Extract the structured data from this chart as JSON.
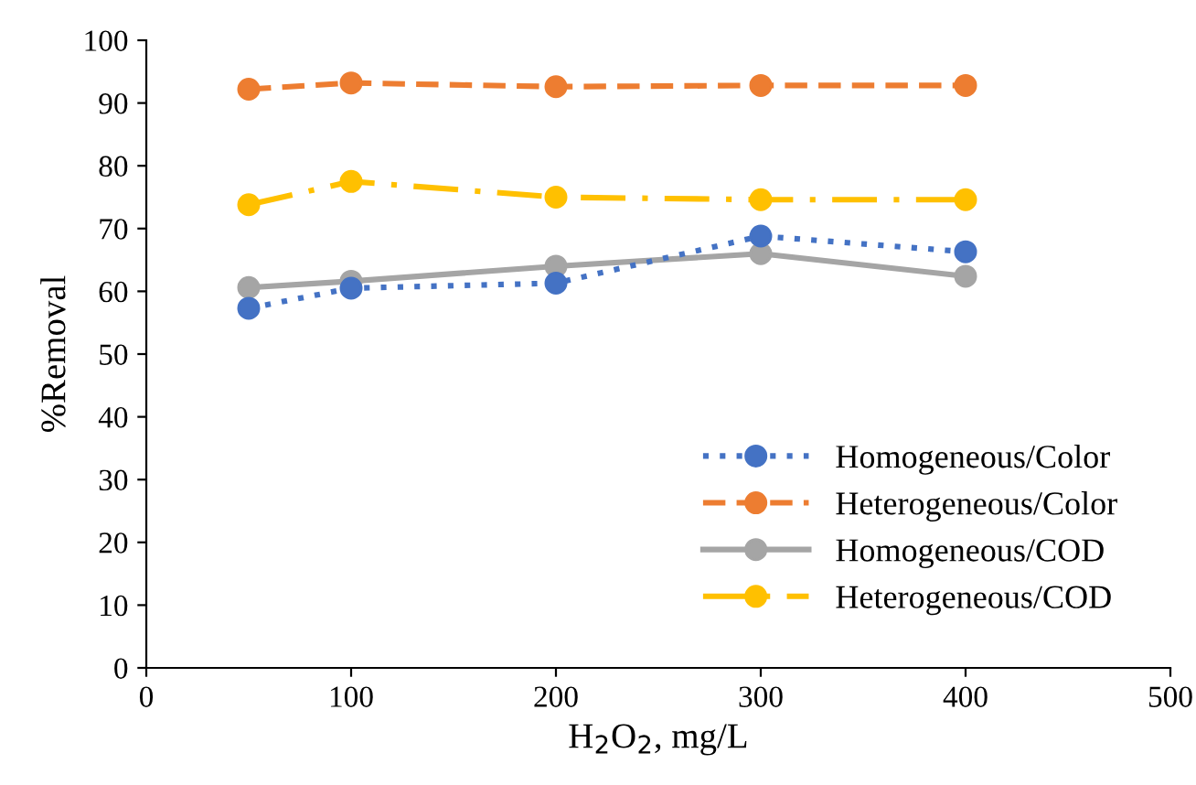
{
  "chart_data": {
    "type": "line",
    "xlabel": "H$_{2}$O$_{2}$, mg/L",
    "ylabel": "%Removal",
    "x": [
      50,
      100,
      200,
      300,
      400
    ],
    "series": [
      {
        "name": "Homogeneous/Color",
        "color": "#4472c4",
        "line_style": "dotted",
        "values": [
          57.3,
          60.5,
          61.3,
          68.8,
          66.3
        ]
      },
      {
        "name": "Heterogeneous/Color",
        "color": "#ed7d31",
        "line_style": "dashed",
        "values": [
          92.2,
          93.2,
          92.6,
          92.8,
          92.8
        ]
      },
      {
        "name": "Homogeneous/COD",
        "color": "#a5a5a5",
        "line_style": "solid",
        "values": [
          60.6,
          61.6,
          64.0,
          66.0,
          62.4
        ]
      },
      {
        "name": "Heterogeneous/COD",
        "color": "#ffc000",
        "line_style": "dashdot",
        "values": [
          73.8,
          77.5,
          75.0,
          74.6,
          74.6
        ]
      }
    ],
    "xlim": [
      0,
      500
    ],
    "xticks": [
      0,
      100,
      200,
      300,
      400,
      500
    ],
    "ylim": [
      0,
      100
    ],
    "yticks": [
      0,
      10,
      20,
      30,
      40,
      50,
      60,
      70,
      80,
      90,
      100
    ],
    "marker": "circle",
    "grid": false,
    "legend": "bottom right"
  }
}
